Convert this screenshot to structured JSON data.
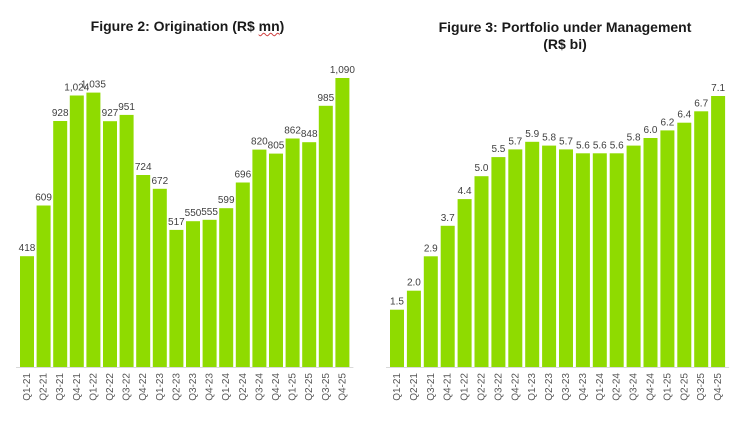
{
  "colors": {
    "bar": "#8fdb00",
    "baseline": "#d9d9d9"
  },
  "chart_data": [
    {
      "type": "bar",
      "title_parts": [
        "Figure 2: Origination (R$ ",
        "mn",
        ")"
      ],
      "title": "Figure 2: Origination (R$ mn)",
      "categories": [
        "Q1-21",
        "Q2-21",
        "Q3-21",
        "Q4-21",
        "Q1-22",
        "Q2-22",
        "Q3-22",
        "Q4-22",
        "Q1-23",
        "Q2-23",
        "Q3-23",
        "Q4-23",
        "Q1-24",
        "Q2-24",
        "Q3-24",
        "Q4-24",
        "Q1-25",
        "Q2-25",
        "Q3-25",
        "Q4-25"
      ],
      "values": [
        418,
        609,
        928,
        1024,
        1035,
        927,
        951,
        724,
        672,
        517,
        550,
        555,
        599,
        696,
        820,
        805,
        862,
        848,
        985,
        1090
      ],
      "labels": [
        "418",
        "609",
        "928",
        "1,024",
        "1,035",
        "927",
        "951",
        "724",
        "672",
        "517",
        "550",
        "555",
        "599",
        "696",
        "820",
        "805",
        "862",
        "848",
        "985",
        "1,090"
      ],
      "xlabel": "",
      "ylabel": "",
      "ylim": [
        0,
        1090
      ],
      "grid": false,
      "legend": "none"
    },
    {
      "type": "bar",
      "title_lines": [
        "Figure 3: Portfolio under Management",
        "(R$ bi)"
      ],
      "title": "Figure 3: Portfolio under Management (R$ bi)",
      "categories": [
        "Q1-21",
        "Q2-21",
        "Q3-21",
        "Q4-21",
        "Q1-22",
        "Q2-22",
        "Q3-22",
        "Q4-22",
        "Q1-23",
        "Q2-23",
        "Q3-23",
        "Q4-23",
        "Q1-24",
        "Q2-24",
        "Q3-24",
        "Q4-24",
        "Q1-25",
        "Q2-25",
        "Q3-25",
        "Q4-25"
      ],
      "values": [
        1.5,
        2.0,
        2.9,
        3.7,
        4.4,
        5.0,
        5.5,
        5.7,
        5.9,
        5.8,
        5.7,
        5.6,
        5.6,
        5.6,
        5.8,
        6.0,
        6.2,
        6.4,
        6.7,
        7.1
      ],
      "labels": [
        "1.5",
        "2.0",
        "2.9",
        "3.7",
        "4.4",
        "5.0",
        "5.5",
        "5.7",
        "5.9",
        "5.8",
        "5.7",
        "5.6",
        "5.6",
        "5.6",
        "5.8",
        "6.0",
        "6.2",
        "6.4",
        "6.7",
        "7.1"
      ],
      "xlabel": "",
      "ylabel": "",
      "ylim": [
        0,
        7.1
      ],
      "grid": false,
      "legend": "none"
    }
  ]
}
